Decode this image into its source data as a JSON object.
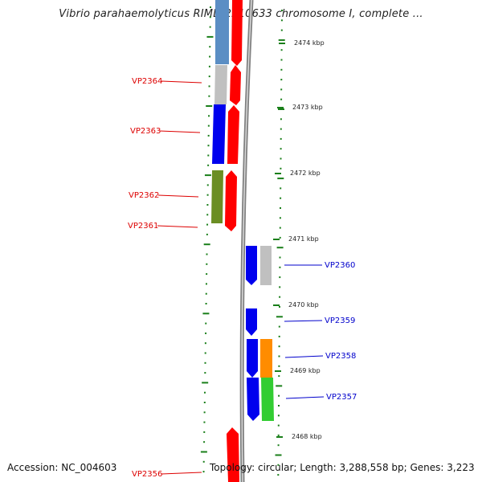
{
  "title": "Vibrio parahaemolyticus RIMD 2210633 chromosome I, complete ...",
  "footer": {
    "accession": "Accession: NC_004603",
    "topology": "Topology: circular; Length: 3,288,558 bp; Genes: 3,223"
  },
  "colors": {
    "left_label": "#dd0000",
    "right_label": "#0000cc",
    "tick": "#1a7f1a",
    "backbone": "#808080",
    "red": "#ff0000",
    "steelblue": "#5b8ec4",
    "silver": "#c0c0c0",
    "blue": "#0000ee",
    "olive": "#6b8e23",
    "orange": "#ff8c00",
    "green": "#32cd32"
  },
  "kbp_labels": [
    {
      "text": "2474 kbp"
    },
    {
      "text": "2473 kbp"
    },
    {
      "text": "2472 kbp"
    },
    {
      "text": "2471 kbp"
    },
    {
      "text": "2470 kbp"
    },
    {
      "text": "2469 kbp"
    },
    {
      "text": "2468 kbp"
    }
  ],
  "left_labels": [
    {
      "text": "VP2364"
    },
    {
      "text": "VP2363"
    },
    {
      "text": "VP2362"
    },
    {
      "text": "VP2361"
    },
    {
      "text": "VP2356"
    }
  ],
  "right_labels": [
    {
      "text": "VP2360"
    },
    {
      "text": "VP2359"
    },
    {
      "text": "VP2358"
    },
    {
      "text": "VP2357"
    }
  ]
}
